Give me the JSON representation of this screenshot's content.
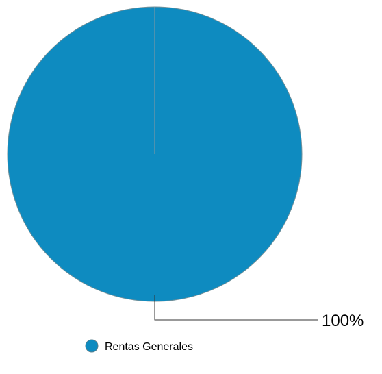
{
  "chart_data": {
    "type": "pie",
    "title": "",
    "categories": [
      "Rentas Generales"
    ],
    "values": [
      100
    ],
    "data_labels": [
      "100%"
    ],
    "colors": [
      "#0e8bc0"
    ],
    "legend_position": "bottom"
  }
}
